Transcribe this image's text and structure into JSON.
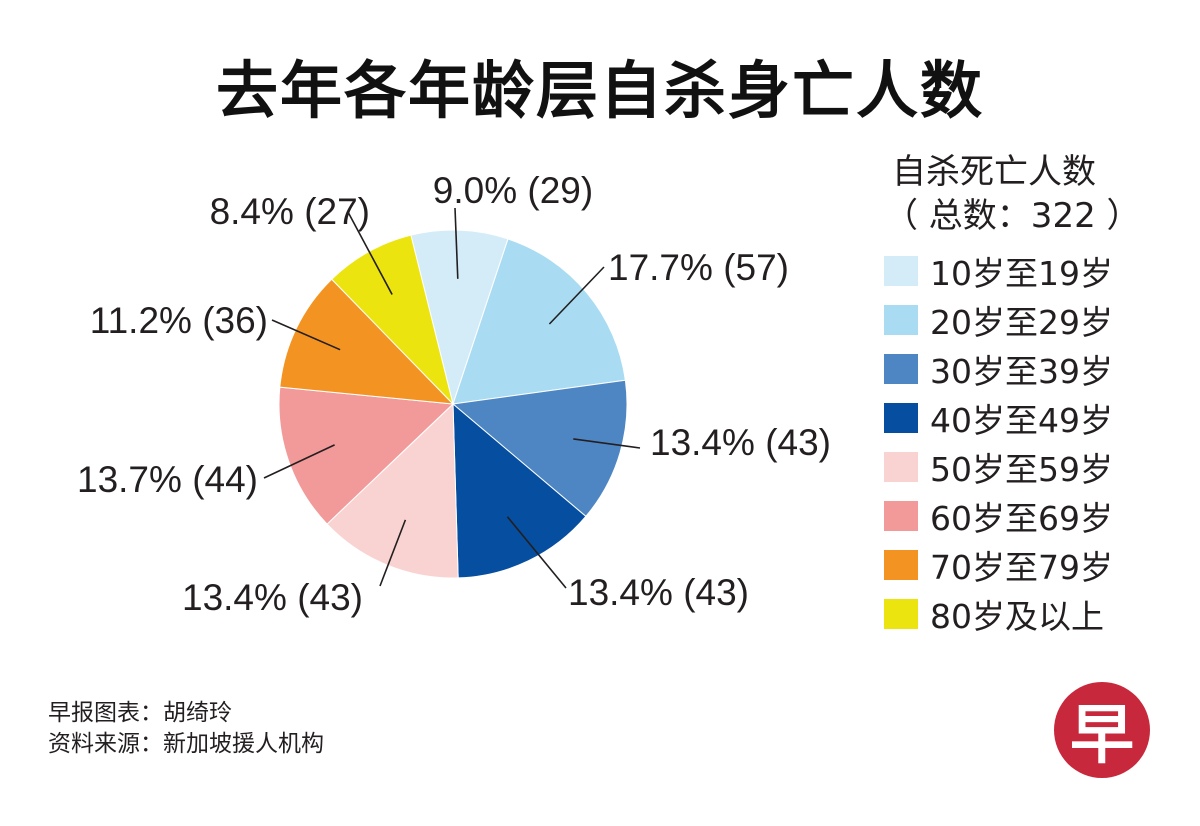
{
  "chart_data": {
    "type": "pie",
    "title": "去年各年龄层自杀身亡人数",
    "legend_title": "自杀死亡人数",
    "legend_subtitle": "（ 总数：322 ）",
    "legend_position": "right",
    "categories": [
      "10岁至19岁",
      "20岁至29岁",
      "30岁至39岁",
      "40岁至49岁",
      "50岁至59岁",
      "60岁至69岁",
      "70岁至79岁",
      "80岁及以上"
    ],
    "values": [
      29,
      57,
      43,
      43,
      43,
      44,
      36,
      27
    ],
    "percentages": [
      9.0,
      17.7,
      13.4,
      13.4,
      13.4,
      13.7,
      11.2,
      8.4
    ],
    "data_labels": [
      "9.0% (29)",
      "17.7% (57)",
      "13.4% (43)",
      "13.4% (43)",
      "13.4% (43)",
      "13.7% (44)",
      "11.2% (36)",
      "8.4% (27)"
    ],
    "colors": [
      "#d4ecf7",
      "#a9dcf2",
      "#4e86c4",
      "#054ea0",
      "#f9d3d1",
      "#f29a9a",
      "#f39322",
      "#ebe40e"
    ],
    "total": 322
  },
  "footer": {
    "credit": "早报图表：胡绮玲",
    "source": "资料来源：新加坡援人机构"
  },
  "logo": {
    "char": "早",
    "color": "#c8283c"
  }
}
